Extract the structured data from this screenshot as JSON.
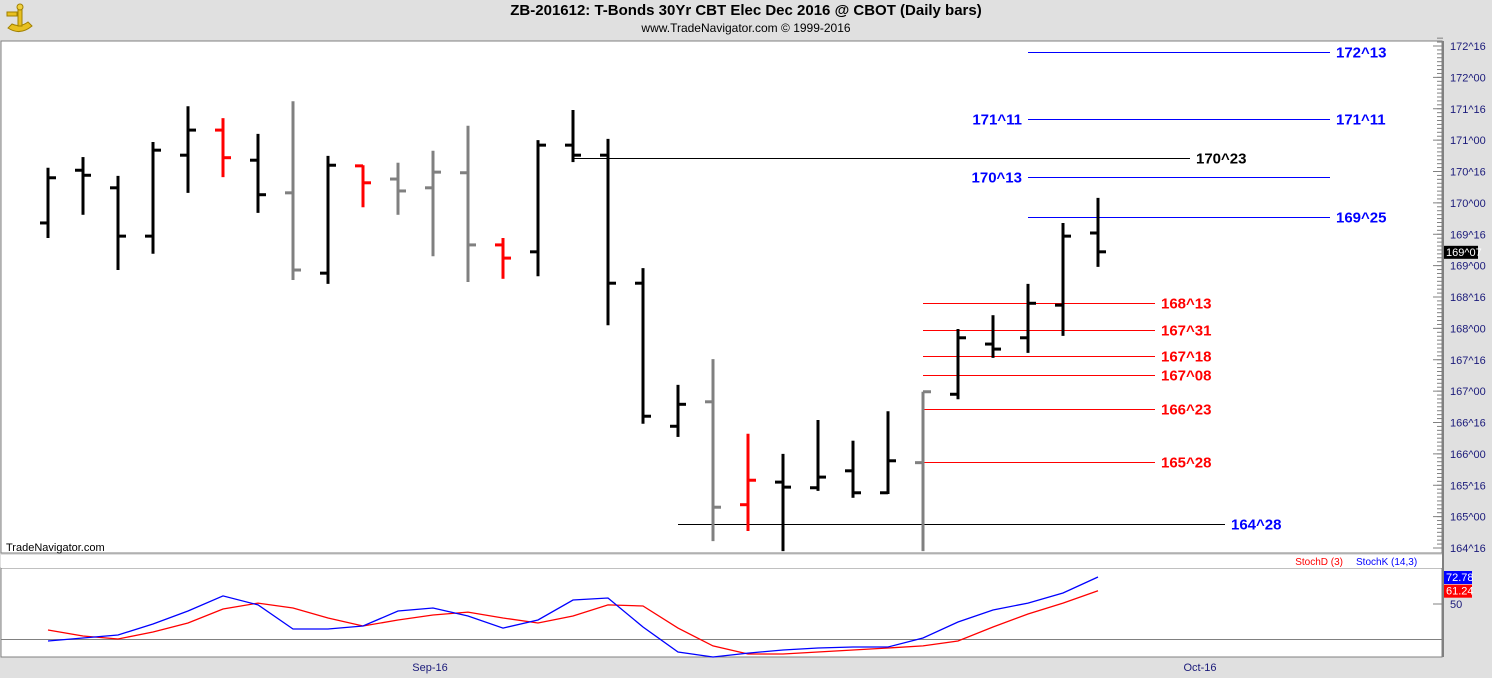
{
  "header": {
    "title": "ZB-201612:  T-Bonds 30Yr CBT Elec Dec 2016 @ CBOT  (Daily bars)",
    "subtitle": "www.TradeNavigator.com © 1999-2016",
    "watermark": "TradeNavigator.com",
    "logo_icon": "sextant-icon"
  },
  "colors": {
    "up_bar": "#000000",
    "down_bar": "#ff0000",
    "neutral_bar": "#808080",
    "stochK": "#0000ff",
    "stochD": "#ff0000",
    "axis_text": "#1a1a7a",
    "background": "#ffffff",
    "frame": "#e0e0e0"
  },
  "chart_data": [
    {
      "type": "ohlc",
      "title": "ZB-201612:  T-Bonds 30Yr CBT Elec Dec 2016 @ CBOT  (Daily bars)",
      "price_format": "points^32nds",
      "ylim": [
        164.375,
        172.6
      ],
      "y_ticks": [
        "172^16",
        "172^00",
        "171^16",
        "171^00",
        "170^16",
        "170^00",
        "169^16",
        "169^00",
        "168^16",
        "168^00",
        "167^16",
        "167^00",
        "166^16",
        "166^00",
        "165^16",
        "165^00",
        "164^16"
      ],
      "y_tick_values": [
        172.5,
        172,
        171.5,
        171,
        170.5,
        170,
        169.5,
        169,
        168.5,
        168,
        167.5,
        167,
        166.5,
        166,
        165.5,
        165,
        164.5
      ],
      "x_ticks": [
        {
          "label": "Sep-16",
          "bar": 11
        },
        {
          "label": "Oct-16",
          "bar": 33
        }
      ],
      "last_price_label": "169^07",
      "last_price": 169.22,
      "bars": [
        {
          "o": 169.68,
          "h": 170.56,
          "l": 169.44,
          "c": 170.4,
          "color": "black"
        },
        {
          "o": 170.52,
          "h": 170.73,
          "l": 169.81,
          "c": 170.44,
          "color": "black"
        },
        {
          "o": 170.24,
          "h": 170.43,
          "l": 168.93,
          "c": 169.47,
          "color": "black"
        },
        {
          "o": 169.47,
          "h": 170.97,
          "l": 169.19,
          "c": 170.84,
          "color": "black"
        },
        {
          "o": 170.76,
          "h": 171.54,
          "l": 170.16,
          "c": 171.16,
          "color": "black"
        },
        {
          "o": 171.16,
          "h": 171.35,
          "l": 170.41,
          "c": 170.72,
          "color": "red"
        },
        {
          "o": 170.68,
          "h": 171.1,
          "l": 169.84,
          "c": 170.13,
          "color": "black"
        },
        {
          "o": 170.16,
          "h": 171.62,
          "l": 168.77,
          "c": 168.93,
          "color": "gray"
        },
        {
          "o": 168.88,
          "h": 170.75,
          "l": 168.71,
          "c": 170.6,
          "color": "black"
        },
        {
          "o": 170.59,
          "h": 170.6,
          "l": 169.93,
          "c": 170.32,
          "color": "red"
        },
        {
          "o": 170.38,
          "h": 170.64,
          "l": 169.81,
          "c": 170.19,
          "color": "gray"
        },
        {
          "o": 170.24,
          "h": 170.83,
          "l": 169.15,
          "c": 170.49,
          "color": "gray"
        },
        {
          "o": 170.48,
          "h": 171.23,
          "l": 168.74,
          "c": 169.33,
          "color": "gray"
        },
        {
          "o": 169.33,
          "h": 169.44,
          "l": 168.79,
          "c": 169.12,
          "color": "red"
        },
        {
          "o": 169.22,
          "h": 171.0,
          "l": 168.83,
          "c": 170.92,
          "color": "black"
        },
        {
          "o": 170.92,
          "h": 171.48,
          "l": 170.65,
          "c": 170.76,
          "color": "black"
        },
        {
          "o": 170.76,
          "h": 171.02,
          "l": 168.05,
          "c": 168.72,
          "color": "black"
        },
        {
          "o": 168.72,
          "h": 168.96,
          "l": 166.48,
          "c": 166.6,
          "color": "black"
        },
        {
          "o": 166.44,
          "h": 167.1,
          "l": 166.27,
          "c": 166.79,
          "color": "black"
        },
        {
          "o": 166.83,
          "h": 167.51,
          "l": 164.61,
          "c": 165.15,
          "color": "gray"
        },
        {
          "o": 165.19,
          "h": 166.32,
          "l": 164.77,
          "c": 165.58,
          "color": "red"
        },
        {
          "o": 165.55,
          "h": 166.0,
          "l": 164.45,
          "c": 165.47,
          "color": "black"
        },
        {
          "o": 165.46,
          "h": 166.54,
          "l": 165.41,
          "c": 165.63,
          "color": "black"
        },
        {
          "o": 165.73,
          "h": 166.21,
          "l": 165.3,
          "c": 165.38,
          "color": "black"
        },
        {
          "o": 165.38,
          "h": 166.68,
          "l": 165.36,
          "c": 165.89,
          "color": "black"
        },
        {
          "o": 165.86,
          "h": 166.99,
          "l": 164.45,
          "c": 166.99,
          "color": "gray"
        },
        {
          "o": 166.95,
          "h": 167.99,
          "l": 166.87,
          "c": 167.85,
          "color": "black"
        },
        {
          "o": 167.75,
          "h": 168.21,
          "l": 167.53,
          "c": 167.67,
          "color": "black"
        },
        {
          "o": 167.85,
          "h": 168.71,
          "l": 167.61,
          "c": 168.4,
          "color": "black"
        },
        {
          "o": 168.37,
          "h": 169.68,
          "l": 167.88,
          "c": 169.47,
          "color": "black"
        },
        {
          "o": 169.52,
          "h": 170.08,
          "l": 168.98,
          "c": 169.22,
          "color": "black"
        }
      ],
      "levels": [
        {
          "label": "172^13",
          "value": 172.406,
          "from_bar": 28,
          "to_bar": 37,
          "line_color": "#0000ff",
          "label_color": "#0000ff",
          "label_right": true,
          "label_left": false
        },
        {
          "label": "171^11",
          "value": 171.344,
          "from_bar": 28,
          "to_bar": 37,
          "line_color": "#0000ff",
          "label_color": "#0000ff",
          "label_right": true,
          "label_left": true
        },
        {
          "label": "170^23",
          "value": 170.719,
          "from_bar": 15,
          "to_bar": 33,
          "line_color": "#000000",
          "label_color": "#000000",
          "label_right": true,
          "label_left": false
        },
        {
          "label": "170^13",
          "value": 170.406,
          "from_bar": 28,
          "to_bar": 37,
          "line_color": "#0000ff",
          "label_color": "#0000ff",
          "label_right": false,
          "label_left": true
        },
        {
          "label": "169^25",
          "value": 169.781,
          "from_bar": 28,
          "to_bar": 37,
          "line_color": "#0000ff",
          "label_color": "#0000ff",
          "label_right": true,
          "label_left": false
        },
        {
          "label": "168^13",
          "value": 168.406,
          "from_bar": 25,
          "to_bar": 32,
          "line_color": "#ff0000",
          "label_color": "#ff0000",
          "label_right": true,
          "label_left": false
        },
        {
          "label": "167^31",
          "value": 167.969,
          "from_bar": 25,
          "to_bar": 32,
          "line_color": "#ff0000",
          "label_color": "#ff0000",
          "label_right": true,
          "label_left": false
        },
        {
          "label": "167^18",
          "value": 167.5625,
          "from_bar": 25,
          "to_bar": 32,
          "line_color": "#ff0000",
          "label_color": "#ff0000",
          "label_right": true,
          "label_left": false
        },
        {
          "label": "167^08",
          "value": 167.25,
          "from_bar": 25,
          "to_bar": 32,
          "line_color": "#ff0000",
          "label_color": "#ff0000",
          "label_right": true,
          "label_left": false
        },
        {
          "label": "166^23",
          "value": 166.719,
          "from_bar": 25,
          "to_bar": 32,
          "line_color": "#ff0000",
          "label_color": "#ff0000",
          "label_right": true,
          "label_left": false
        },
        {
          "label": "165^28",
          "value": 165.875,
          "from_bar": 25,
          "to_bar": 32,
          "line_color": "#ff0000",
          "label_color": "#ff0000",
          "label_right": true,
          "label_left": false
        },
        {
          "label": "164^28",
          "value": 164.875,
          "from_bar": 18,
          "to_bar": 34,
          "line_color": "#000000",
          "label_color": "#0000ff",
          "label_right": true,
          "label_left": false
        }
      ]
    },
    {
      "type": "line",
      "legend": [
        "StochD (3)",
        "StochK (14,3)"
      ],
      "legend_placement": "top-right",
      "ylim": [
        5,
        80
      ],
      "y_ticks": [
        "50"
      ],
      "reference_lines": [
        20
      ],
      "series": [
        {
          "name": "StochK (14,3)",
          "color": "#0000ff",
          "last_label": "72.78",
          "values": [
            18.8,
            21.3,
            23.8,
            33.1,
            44.1,
            56.8,
            49.2,
            28.9,
            28.9,
            31.4,
            44.1,
            46.6,
            39.9,
            29.7,
            36.5,
            53.4,
            55.1,
            30.6,
            9.5,
            5.3,
            8.6,
            11.2,
            12.9,
            13.7,
            13.7,
            21.3,
            34.8,
            44.9,
            50.8,
            59.3,
            72.78
          ]
        },
        {
          "name": "StochD (3)",
          "color": "#ff0000",
          "last_label": "61.24",
          "values": [
            28.1,
            23.0,
            20.5,
            26.4,
            34.0,
            45.8,
            50.8,
            46.6,
            38.2,
            31.4,
            36.5,
            40.7,
            43.2,
            38.2,
            34.0,
            39.9,
            49.2,
            48.3,
            29.7,
            14.6,
            7.8,
            7.8,
            9.5,
            11.2,
            12.9,
            14.6,
            18.8,
            30.6,
            41.6,
            50.8,
            61.24
          ]
        }
      ]
    }
  ]
}
